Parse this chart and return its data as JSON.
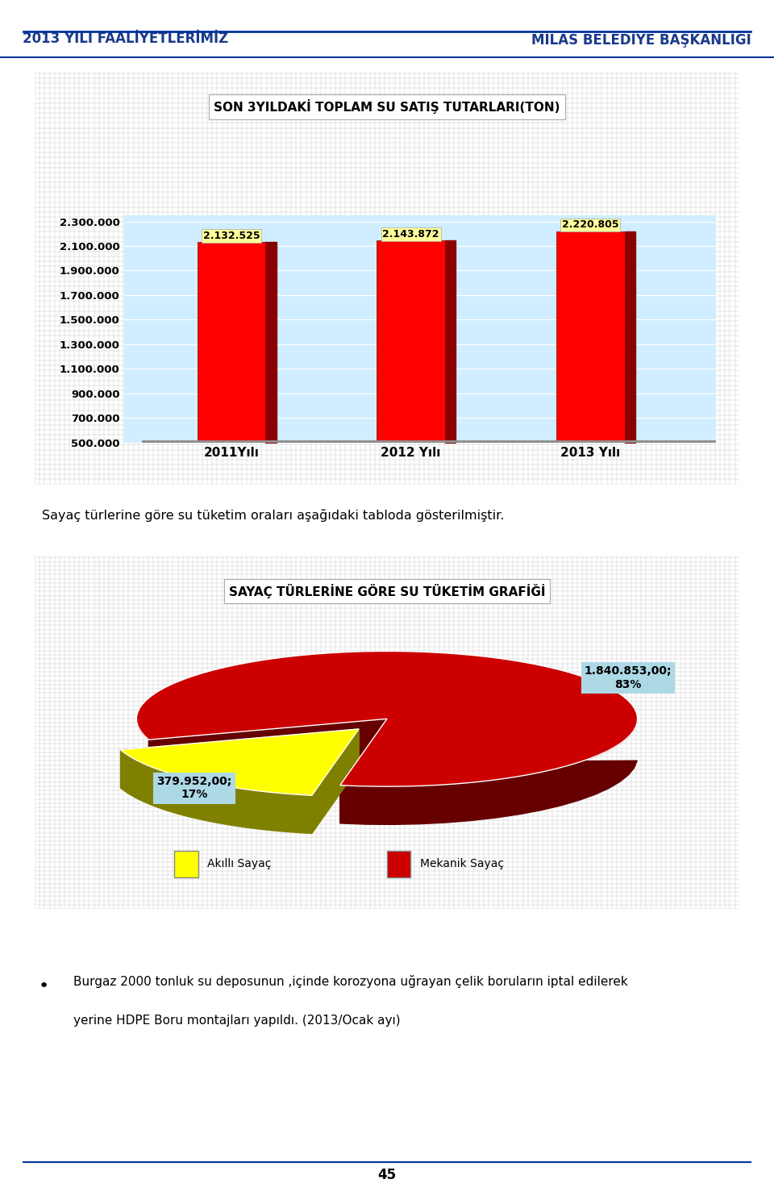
{
  "header_left": "2013 YILI FAALİYETLERİMİZ",
  "header_right": "MİLAS BELEDİYE BAŞKANLIĞI",
  "bar_title": "SON 3YILDAKİ TOPLAM SU SATIŞ TUTARLARI(TON)",
  "bar_categories": [
    "2011Yılı",
    "2012 Yılı",
    "2013 Yılı"
  ],
  "bar_values": [
    2132525,
    2143872,
    2220805
  ],
  "bar_labels": [
    "2.132.525",
    "2.143.872",
    "2.220.805"
  ],
  "bar_color": "#FF0000",
  "bar_shadow_color": "#880000",
  "bar_bg_color": "#D0EEFF",
  "bar_floor_color": "#A0A0A0",
  "bar_ylim": [
    500000,
    2350000
  ],
  "bar_yticks": [
    500000,
    700000,
    900000,
    1100000,
    1300000,
    1500000,
    1700000,
    1900000,
    2100000,
    2300000
  ],
  "bar_ytick_labels": [
    "500.000",
    "700.000",
    "900.000",
    "1.100.000",
    "1.300.000",
    "1.500.000",
    "1.700.000",
    "1.900.000",
    "2.100.000",
    "2.300.000"
  ],
  "pie_title": "SAYAÇ TÜRLERİNE GÖRE SU TÜKETİM GRAFİĞİ",
  "pie_values": [
    17,
    83
  ],
  "pie_labels": [
    "Akıllı Sayaç",
    "Mekanik Sayaç"
  ],
  "pie_colors": [
    "#FFFF00",
    "#CC0000"
  ],
  "pie_shadow_colors": [
    "#808000",
    "#660000"
  ],
  "pie_label_0": "379.952,00;\n17%",
  "pie_label_1": "1.840.853,00;\n83%",
  "pie_label_bg": "#ADD8E6",
  "pie_bg_color": "#E0E0E0",
  "pie_outer_bg": "#C8C8C8",
  "mid_text": "Sayaç türlerine göre su tüketim oraları aşağıdaki tabloda gösterilmiştir.",
  "bullet_text_line1": "Burgaz 2000 tonluk su deposunun ,içinde korozyona uğrayan çelik boruların iptal edilerek",
  "bullet_text_line2": "yerine HDPE Boru montajları yapıldı. (2013/Ocak ayı)",
  "page_number": "45",
  "header_line_color": "#003399",
  "outer_frame_color": "#B0B0B0"
}
